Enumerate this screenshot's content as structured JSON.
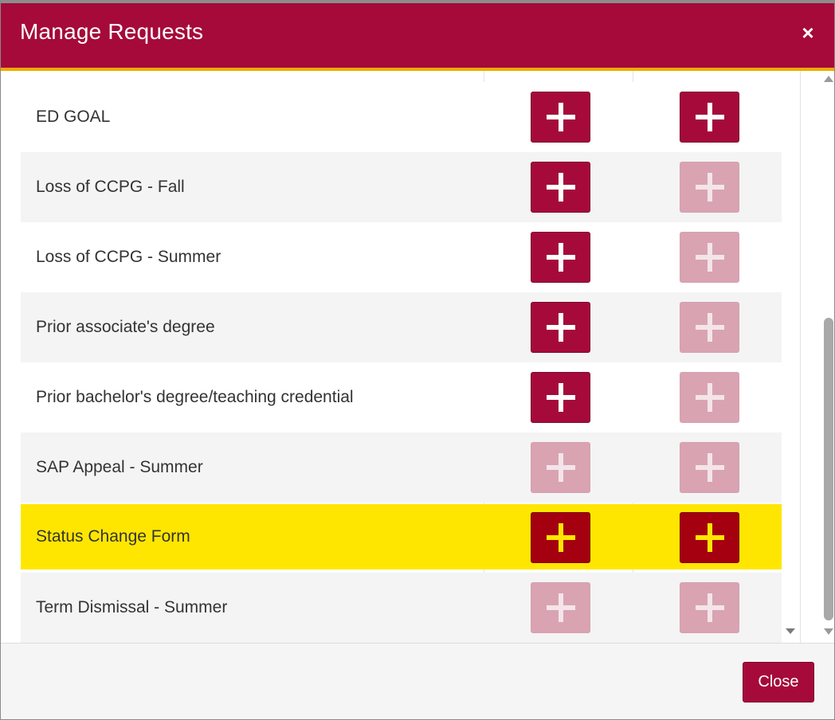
{
  "dialog": {
    "title": "Manage Requests",
    "close_icon": "×"
  },
  "rows": [
    {
      "label": "",
      "col1": "on",
      "col2": "faded",
      "partial": true
    },
    {
      "label": "ED GOAL",
      "col1": "enabled",
      "col2": "enabled",
      "highlighted": false
    },
    {
      "label": "Loss of CCPG - Fall",
      "col1": "enabled",
      "col2": "disabled",
      "highlighted": false
    },
    {
      "label": "Loss of CCPG - Summer",
      "col1": "enabled",
      "col2": "disabled",
      "highlighted": false
    },
    {
      "label": "Prior associate's degree",
      "col1": "enabled",
      "col2": "disabled",
      "highlighted": false
    },
    {
      "label": "Prior bachelor's degree/teaching credential",
      "col1": "enabled",
      "col2": "disabled",
      "highlighted": false
    },
    {
      "label": "SAP Appeal - Summer",
      "col1": "disabled",
      "col2": "disabled",
      "highlighted": false
    },
    {
      "label": "Status Change Form",
      "col1": "enabled",
      "col2": "enabled",
      "highlighted": true
    },
    {
      "label": "Term Dismissal - Summer",
      "col1": "disabled",
      "col2": "disabled",
      "highlighted": false
    }
  ],
  "footer": {
    "close_label": "Close"
  },
  "colors": {
    "brand": "#a50a3b",
    "accent": "#f2a900",
    "highlight": "#ffe600",
    "disabled_button": "#d9a3b2"
  },
  "icons": {
    "add": "plus-icon",
    "close": "close-icon"
  }
}
